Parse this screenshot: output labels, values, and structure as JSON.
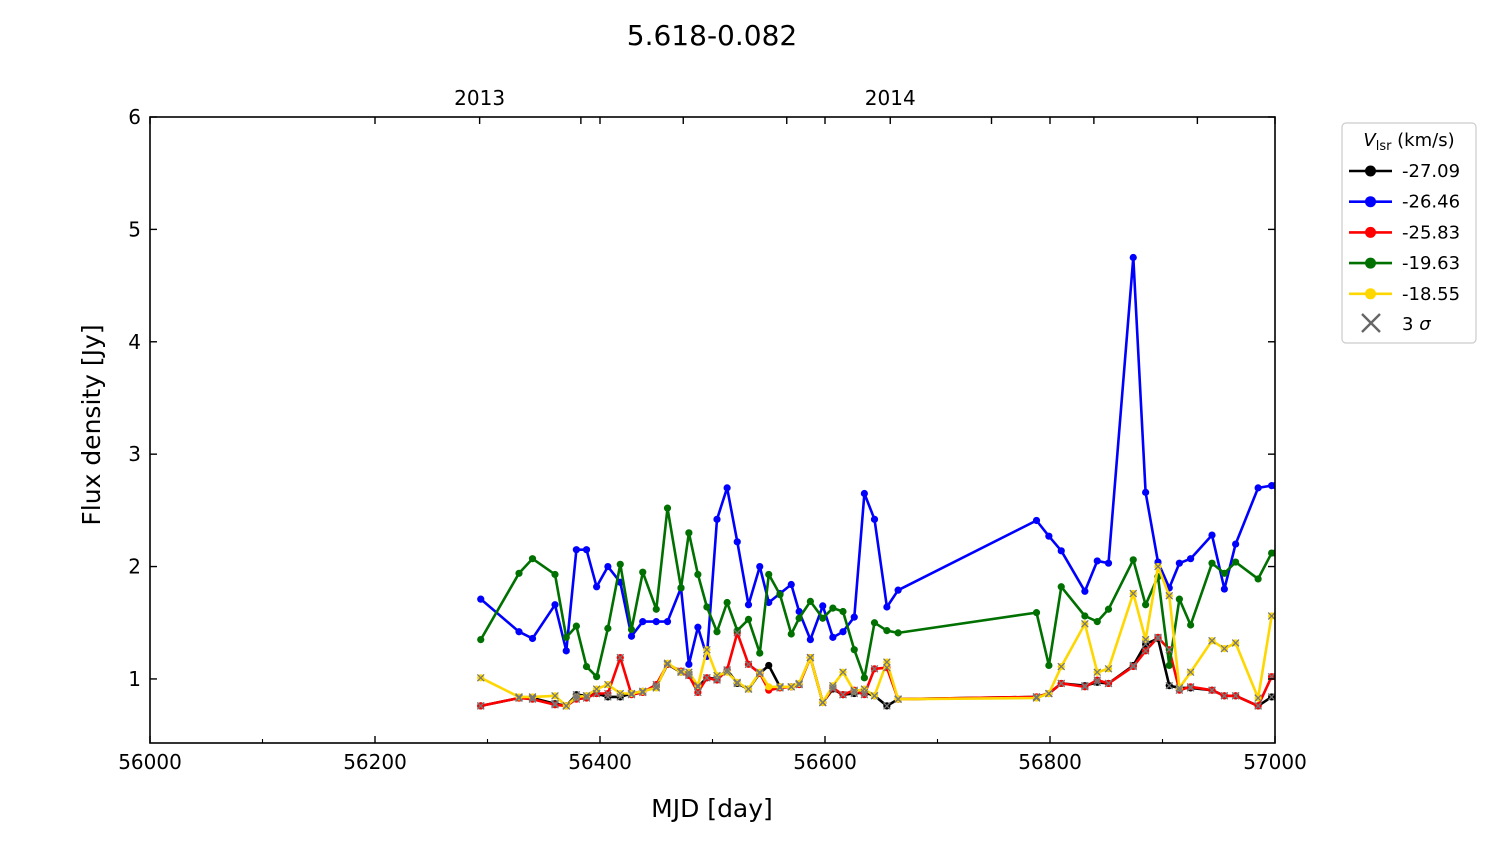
{
  "chart_data": {
    "type": "line",
    "title": "5.618-0.082",
    "xlabel": "MJD [day]",
    "ylabel": "Flux density [Jy]",
    "xlim": [
      56000,
      57000
    ],
    "ylim": [
      0.43,
      6
    ],
    "x_ticks": [
      56000,
      56200,
      56400,
      56600,
      56800,
      57000
    ],
    "x_tick_labels": [
      "56000",
      "56200",
      "56400",
      "56600",
      "56800",
      "57000"
    ],
    "x_minor_ticks": [
      56100,
      56300,
      56500,
      56700,
      56900
    ],
    "y_ticks": [
      1,
      2,
      3,
      4,
      5,
      6
    ],
    "y_tick_labels": [
      "1",
      "2",
      "3",
      "4",
      "5",
      "6"
    ],
    "top_axis": {
      "ticks": [
        56293,
        56658
      ],
      "labels": [
        "2013",
        "2014"
      ],
      "minor_ticks": [
        56383,
        56474,
        56566,
        56748,
        56839,
        56931
      ]
    },
    "grid": false,
    "legend": {
      "placement": "outside right",
      "title_italic": "V",
      "title_sub": "lsr",
      "title_rest": " (km/s)",
      "extra_entry": {
        "label": "3 ",
        "label_italic": "σ",
        "marker": "x",
        "color": "#666666"
      }
    },
    "series": [
      {
        "name": "-27.09",
        "color": "#000000",
        "points": [
          [
            56294,
            0.76
          ],
          [
            56328,
            0.83
          ],
          [
            56340,
            0.83
          ],
          [
            56360,
            0.78
          ],
          [
            56370,
            0.76
          ],
          [
            56379,
            0.86
          ],
          [
            56388,
            0.85
          ],
          [
            56397,
            0.87
          ],
          [
            56407,
            0.84
          ],
          [
            56418,
            0.84
          ],
          [
            56428,
            0.87
          ],
          [
            56438,
            0.89
          ],
          [
            56450,
            0.93
          ],
          [
            56460,
            1.13
          ],
          [
            56472,
            1.06
          ],
          [
            56479,
            1.04
          ],
          [
            56487,
            0.93
          ],
          [
            56495,
            1.01
          ],
          [
            56504,
            1.0
          ],
          [
            56513,
            1.08
          ],
          [
            56522,
            0.96
          ],
          [
            56532,
            0.91
          ],
          [
            56542,
            1.05
          ],
          [
            56550,
            1.12
          ],
          [
            56560,
            0.93
          ],
          [
            56570,
            0.93
          ],
          [
            56577,
            0.95
          ],
          [
            56587,
            1.19
          ],
          [
            56598,
            0.79
          ],
          [
            56607,
            0.91
          ],
          [
            56616,
            0.86
          ],
          [
            56626,
            0.87
          ],
          [
            56635,
            0.88
          ],
          [
            56644,
            0.85
          ],
          [
            56655,
            0.76
          ],
          [
            56665,
            0.82
          ],
          [
            56788,
            0.84
          ],
          [
            56799,
            0.87
          ],
          [
            56810,
            0.96
          ],
          [
            56831,
            0.94
          ],
          [
            56842,
            0.97
          ],
          [
            56852,
            0.96
          ],
          [
            56874,
            1.12
          ],
          [
            56885,
            1.31
          ],
          [
            56896,
            1.36
          ],
          [
            56906,
            0.94
          ],
          [
            56915,
            0.92
          ],
          [
            56925,
            0.92
          ],
          [
            56944,
            0.9
          ],
          [
            56955,
            0.85
          ],
          [
            56965,
            0.85
          ],
          [
            56985,
            0.76
          ],
          [
            56997,
            0.84
          ],
          [
            57000,
            0.84
          ]
        ]
      },
      {
        "name": "-26.46",
        "color": "#0000ff",
        "points": [
          [
            56294,
            1.71
          ],
          [
            56328,
            1.42
          ],
          [
            56340,
            1.36
          ],
          [
            56360,
            1.66
          ],
          [
            56370,
            1.25
          ],
          [
            56379,
            2.15
          ],
          [
            56388,
            2.15
          ],
          [
            56397,
            1.82
          ],
          [
            56407,
            2.0
          ],
          [
            56418,
            1.86
          ],
          [
            56428,
            1.38
          ],
          [
            56438,
            1.51
          ],
          [
            56450,
            1.51
          ],
          [
            56460,
            1.51
          ],
          [
            56472,
            1.81
          ],
          [
            56479,
            1.13
          ],
          [
            56487,
            1.46
          ],
          [
            56495,
            1.2
          ],
          [
            56504,
            2.42
          ],
          [
            56513,
            2.7
          ],
          [
            56522,
            2.22
          ],
          [
            56532,
            1.66
          ],
          [
            56542,
            2.0
          ],
          [
            56550,
            1.68
          ],
          [
            56560,
            1.76
          ],
          [
            56570,
            1.84
          ],
          [
            56577,
            1.6
          ],
          [
            56587,
            1.35
          ],
          [
            56598,
            1.65
          ],
          [
            56607,
            1.37
          ],
          [
            56616,
            1.42
          ],
          [
            56626,
            1.55
          ],
          [
            56635,
            2.65
          ],
          [
            56644,
            2.42
          ],
          [
            56655,
            1.64
          ],
          [
            56665,
            1.79
          ],
          [
            56788,
            2.41
          ],
          [
            56799,
            2.27
          ],
          [
            56810,
            2.14
          ],
          [
            56831,
            1.78
          ],
          [
            56842,
            2.05
          ],
          [
            56852,
            2.03
          ],
          [
            56874,
            4.75
          ],
          [
            56885,
            2.66
          ],
          [
            56896,
            2.04
          ],
          [
            56906,
            1.81
          ],
          [
            56915,
            2.03
          ],
          [
            56925,
            2.07
          ],
          [
            56944,
            2.28
          ],
          [
            56955,
            1.8
          ],
          [
            56965,
            2.2
          ],
          [
            56985,
            2.7
          ],
          [
            56997,
            2.72
          ],
          [
            57000,
            2.72
          ]
        ]
      },
      {
        "name": "-25.83",
        "color": "#ff0000",
        "points": [
          [
            56294,
            0.76
          ],
          [
            56328,
            0.83
          ],
          [
            56340,
            0.82
          ],
          [
            56360,
            0.77
          ],
          [
            56370,
            0.76
          ],
          [
            56379,
            0.82
          ],
          [
            56388,
            0.83
          ],
          [
            56397,
            0.87
          ],
          [
            56407,
            0.87
          ],
          [
            56418,
            1.19
          ],
          [
            56428,
            0.86
          ],
          [
            56438,
            0.88
          ],
          [
            56450,
            0.95
          ],
          [
            56460,
            1.13
          ],
          [
            56472,
            1.07
          ],
          [
            56479,
            1.03
          ],
          [
            56487,
            0.88
          ],
          [
            56495,
            1.01
          ],
          [
            56504,
            0.99
          ],
          [
            56513,
            1.08
          ],
          [
            56522,
            1.41
          ],
          [
            56532,
            1.13
          ],
          [
            56542,
            1.05
          ],
          [
            56550,
            0.9
          ],
          [
            56560,
            0.92
          ],
          [
            56570,
            0.93
          ],
          [
            56577,
            0.95
          ],
          [
            56587,
            1.19
          ],
          [
            56598,
            0.79
          ],
          [
            56607,
            0.92
          ],
          [
            56616,
            0.86
          ],
          [
            56626,
            0.9
          ],
          [
            56635,
            0.86
          ],
          [
            56644,
            1.09
          ],
          [
            56655,
            1.1
          ],
          [
            56665,
            0.82
          ],
          [
            56788,
            0.84
          ],
          [
            56799,
            0.87
          ],
          [
            56810,
            0.96
          ],
          [
            56831,
            0.93
          ],
          [
            56842,
            0.99
          ],
          [
            56852,
            0.96
          ],
          [
            56874,
            1.11
          ],
          [
            56885,
            1.25
          ],
          [
            56896,
            1.37
          ],
          [
            56906,
            1.26
          ],
          [
            56915,
            0.9
          ],
          [
            56925,
            0.93
          ],
          [
            56944,
            0.9
          ],
          [
            56955,
            0.85
          ],
          [
            56965,
            0.85
          ],
          [
            56985,
            0.76
          ],
          [
            56997,
            1.02
          ],
          [
            57000,
            1.02
          ]
        ]
      },
      {
        "name": "-19.63",
        "color": "#007000",
        "points": [
          [
            56294,
            1.35
          ],
          [
            56328,
            1.94
          ],
          [
            56340,
            2.07
          ],
          [
            56360,
            1.93
          ],
          [
            56370,
            1.37
          ],
          [
            56379,
            1.47
          ],
          [
            56388,
            1.11
          ],
          [
            56397,
            1.02
          ],
          [
            56407,
            1.45
          ],
          [
            56418,
            2.02
          ],
          [
            56428,
            1.44
          ],
          [
            56438,
            1.95
          ],
          [
            56450,
            1.62
          ],
          [
            56460,
            2.52
          ],
          [
            56472,
            1.81
          ],
          [
            56479,
            2.3
          ],
          [
            56487,
            1.93
          ],
          [
            56495,
            1.64
          ],
          [
            56504,
            1.42
          ],
          [
            56513,
            1.68
          ],
          [
            56522,
            1.43
          ],
          [
            56532,
            1.53
          ],
          [
            56542,
            1.23
          ],
          [
            56550,
            1.93
          ],
          [
            56560,
            1.75
          ],
          [
            56570,
            1.4
          ],
          [
            56577,
            1.54
          ],
          [
            56587,
            1.69
          ],
          [
            56598,
            1.54
          ],
          [
            56607,
            1.63
          ],
          [
            56616,
            1.6
          ],
          [
            56626,
            1.26
          ],
          [
            56635,
            1.01
          ],
          [
            56644,
            1.5
          ],
          [
            56655,
            1.43
          ],
          [
            56665,
            1.41
          ],
          [
            56788,
            1.59
          ],
          [
            56799,
            1.12
          ],
          [
            56810,
            1.82
          ],
          [
            56831,
            1.56
          ],
          [
            56842,
            1.51
          ],
          [
            56852,
            1.62
          ],
          [
            56874,
            2.06
          ],
          [
            56885,
            1.66
          ],
          [
            56896,
            1.91
          ],
          [
            56906,
            1.12
          ],
          [
            56915,
            1.71
          ],
          [
            56925,
            1.48
          ],
          [
            56944,
            2.03
          ],
          [
            56955,
            1.94
          ],
          [
            56965,
            2.04
          ],
          [
            56985,
            1.89
          ],
          [
            56997,
            2.12
          ],
          [
            57000,
            2.12
          ]
        ]
      },
      {
        "name": "-18.55",
        "color": "#ffd700",
        "points": [
          [
            56294,
            1.01
          ],
          [
            56328,
            0.84
          ],
          [
            56340,
            0.84
          ],
          [
            56360,
            0.85
          ],
          [
            56370,
            0.76
          ],
          [
            56379,
            0.84
          ],
          [
            56388,
            0.85
          ],
          [
            56397,
            0.91
          ],
          [
            56407,
            0.95
          ],
          [
            56418,
            0.87
          ],
          [
            56428,
            0.87
          ],
          [
            56438,
            0.89
          ],
          [
            56450,
            0.92
          ],
          [
            56460,
            1.14
          ],
          [
            56472,
            1.06
          ],
          [
            56479,
            1.06
          ],
          [
            56487,
            0.94
          ],
          [
            56495,
            1.26
          ],
          [
            56504,
            1.03
          ],
          [
            56513,
            1.06
          ],
          [
            56522,
            0.97
          ],
          [
            56532,
            0.91
          ],
          [
            56542,
            1.06
          ],
          [
            56550,
            0.93
          ],
          [
            56560,
            0.93
          ],
          [
            56570,
            0.93
          ],
          [
            56577,
            0.96
          ],
          [
            56587,
            1.19
          ],
          [
            56598,
            0.79
          ],
          [
            56607,
            0.94
          ],
          [
            56616,
            1.06
          ],
          [
            56626,
            0.89
          ],
          [
            56635,
            0.91
          ],
          [
            56644,
            0.85
          ],
          [
            56655,
            1.15
          ],
          [
            56665,
            0.82
          ],
          [
            56788,
            0.83
          ],
          [
            56799,
            0.87
          ],
          [
            56810,
            1.11
          ],
          [
            56831,
            1.49
          ],
          [
            56842,
            1.06
          ],
          [
            56852,
            1.09
          ],
          [
            56874,
            1.76
          ],
          [
            56885,
            1.35
          ],
          [
            56896,
            2.0
          ],
          [
            56906,
            1.74
          ],
          [
            56915,
            0.92
          ],
          [
            56925,
            1.06
          ],
          [
            56944,
            1.34
          ],
          [
            56955,
            1.27
          ],
          [
            56965,
            1.32
          ],
          [
            56985,
            0.83
          ],
          [
            56997,
            1.56
          ],
          [
            57000,
            1.56
          ]
        ]
      }
    ],
    "three_sigma_x": [
      56294,
      56328,
      56340,
      56360,
      56370,
      56379,
      56388,
      56397,
      56407,
      56418,
      56428,
      56438,
      56450,
      56460,
      56472,
      56479,
      56487,
      56495,
      56504,
      56513,
      56522,
      56532,
      56542,
      56560,
      56570,
      56577,
      56587,
      56598,
      56607,
      56616,
      56626,
      56635,
      56644,
      56655,
      56665,
      56788,
      56799,
      56810,
      56831,
      56842,
      56852,
      56874,
      56885,
      56896,
      56906,
      56915,
      56925,
      56944,
      56955,
      56965,
      56985,
      56997
    ]
  }
}
